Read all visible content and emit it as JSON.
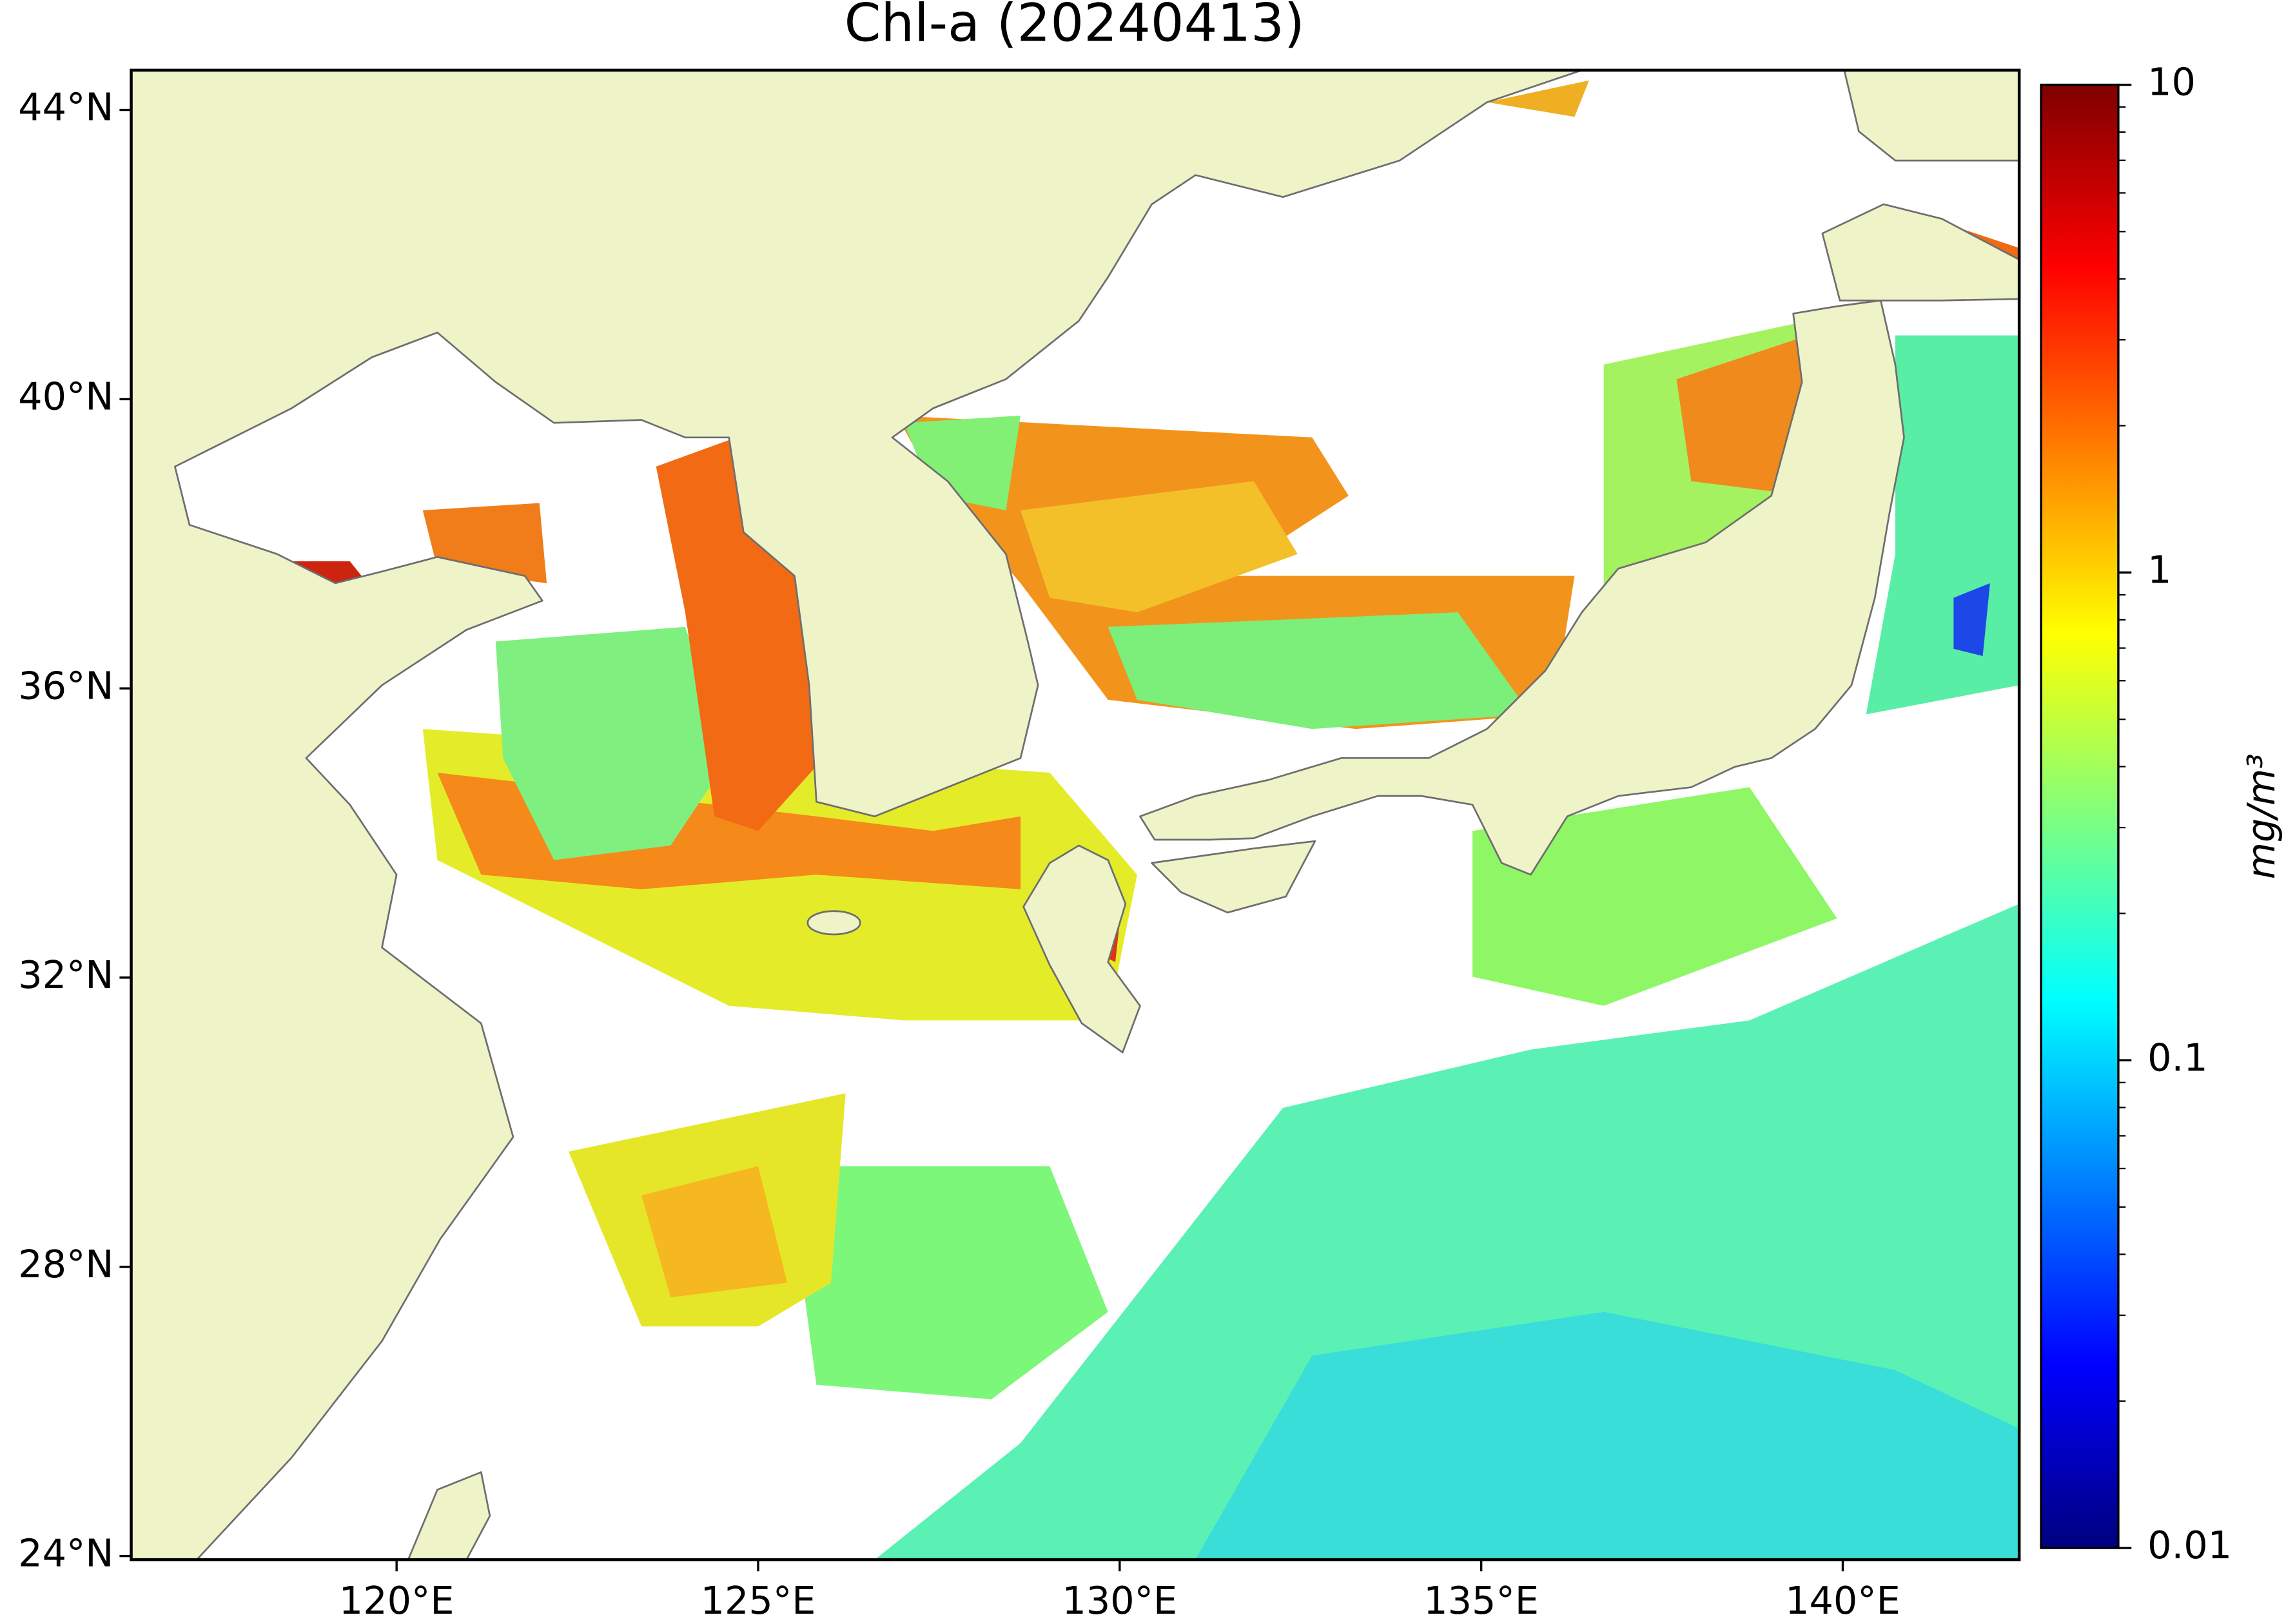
{
  "chart_data": {
    "type": "map",
    "title": "Chl-a (20240413)",
    "xlim": [
      116.33,
      142.44
    ],
    "ylim": [
      23.95,
      44.55
    ],
    "xticks": [
      {
        "value": 120,
        "label": "120°E"
      },
      {
        "value": 125,
        "label": "125°E"
      },
      {
        "value": 130,
        "label": "130°E"
      },
      {
        "value": 135,
        "label": "135°E"
      },
      {
        "value": 140,
        "label": "140°E"
      }
    ],
    "yticks": [
      {
        "value": 24,
        "label": "24°N"
      },
      {
        "value": 28,
        "label": "28°N"
      },
      {
        "value": 32,
        "label": "32°N"
      },
      {
        "value": 36,
        "label": "36°N"
      },
      {
        "value": 40,
        "label": "40°N"
      },
      {
        "value": 44,
        "label": "44°N"
      }
    ],
    "colorbar": {
      "label": "mg/m³",
      "scale": "log",
      "colormap": "jet",
      "lim": [
        0.01,
        10
      ],
      "ticks": [
        0.01,
        0.1,
        1,
        10
      ]
    }
  }
}
